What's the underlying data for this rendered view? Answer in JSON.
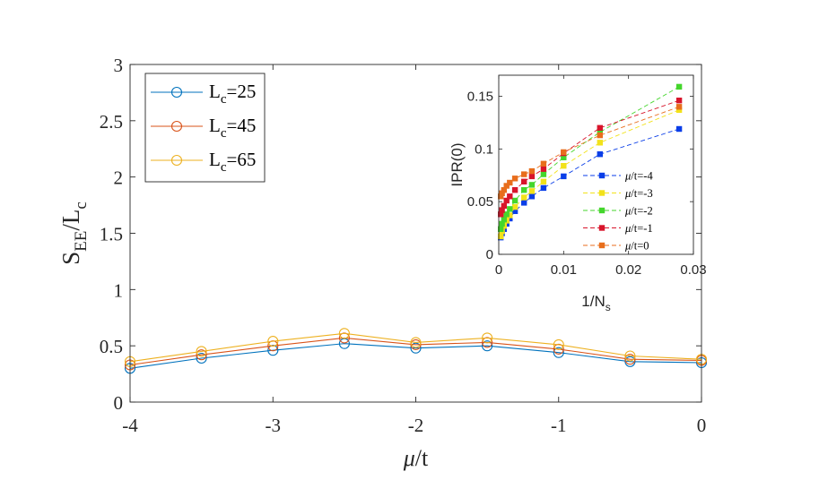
{
  "chart_data": [
    {
      "type": "line",
      "role": "main",
      "title": "",
      "xlabel": {
        "italic": "μ",
        "rest": "/t"
      },
      "ylabel": {
        "base": "S",
        "sub": "EE",
        "mid": "/L",
        "sub2": "c"
      },
      "xlim": [
        -4,
        0
      ],
      "ylim": [
        0,
        3
      ],
      "xticks": [
        -4,
        -3,
        -2,
        -1,
        0
      ],
      "yticks": [
        0,
        0.5,
        1,
        1.5,
        2,
        2.5,
        3
      ],
      "xtick_labels": [
        "-4",
        "-3",
        "-2",
        "-1",
        "0"
      ],
      "ytick_labels": [
        "0",
        "0.5",
        "1",
        "1.5",
        "2",
        "2.5",
        "3"
      ],
      "grid": false,
      "legend_position": "top-left",
      "x": [
        -4,
        -3.5,
        -3,
        -2.5,
        -2,
        -1.5,
        -1,
        -0.5,
        0
      ],
      "series": [
        {
          "name": "L_c=25",
          "label_base": "L",
          "label_sub": "c",
          "label_rest": "=25",
          "color": "#0072BD",
          "values": [
            0.3,
            0.39,
            0.46,
            0.52,
            0.48,
            0.5,
            0.44,
            0.36,
            0.35
          ]
        },
        {
          "name": "L_c=45",
          "label_base": "L",
          "label_sub": "c",
          "label_rest": "=45",
          "color": "#D95319",
          "values": [
            0.33,
            0.42,
            0.5,
            0.57,
            0.51,
            0.53,
            0.47,
            0.38,
            0.37
          ]
        },
        {
          "name": "L_c=65",
          "label_base": "L",
          "label_sub": "c",
          "label_rest": "=65",
          "color": "#EDB120",
          "values": [
            0.36,
            0.45,
            0.54,
            0.61,
            0.53,
            0.57,
            0.51,
            0.41,
            0.38
          ]
        }
      ]
    },
    {
      "type": "line",
      "role": "inset",
      "title": "",
      "xlabel": {
        "base": "1/N",
        "sub": "s"
      },
      "ylabel": {
        "text": "IPR(0)"
      },
      "xlim": [
        0,
        0.03
      ],
      "ylim": [
        0,
        0.17
      ],
      "xticks": [
        0,
        0.01,
        0.02,
        0.03
      ],
      "yticks": [
        0,
        0.05,
        0.1,
        0.15
      ],
      "xtick_labels": [
        "0",
        "0.01",
        "0.02",
        "0.03"
      ],
      "ytick_labels": [
        "0",
        "0.05",
        "0.1",
        "0.15"
      ],
      "grid": false,
      "legend_position": "bottom-right",
      "x": [
        0.0278,
        0.0156,
        0.01,
        0.0069,
        0.0051,
        0.0039,
        0.0025,
        0.0017,
        0.0012,
        0.0008,
        0.0005,
        0.0003
      ],
      "series": [
        {
          "name": "μ/t=-4",
          "label_italic": "μ",
          "label_rest": "/t=-4",
          "color": "#0a3ee8",
          "values": [
            0.119,
            0.095,
            0.074,
            0.063,
            0.055,
            0.049,
            0.041,
            0.034,
            0.029,
            0.024,
            0.02,
            0.016
          ]
        },
        {
          "name": "μ/t=-3",
          "label_italic": "μ",
          "label_rest": "/t=-3",
          "color": "#f2e21a",
          "values": [
            0.137,
            0.106,
            0.084,
            0.069,
            0.06,
            0.054,
            0.045,
            0.037,
            0.032,
            0.027,
            0.022,
            0.017
          ]
        },
        {
          "name": "μ/t=-2",
          "label_italic": "μ",
          "label_rest": "/t=-2",
          "color": "#44d62c",
          "values": [
            0.159,
            0.116,
            0.092,
            0.076,
            0.066,
            0.061,
            0.051,
            0.043,
            0.038,
            0.033,
            0.029,
            0.024
          ]
        },
        {
          "name": "μ/t=-1",
          "label_italic": "μ",
          "label_rest": "/t=-1",
          "color": "#d8152b",
          "values": [
            0.146,
            0.12,
            0.096,
            0.081,
            0.074,
            0.069,
            0.061,
            0.055,
            0.051,
            0.046,
            0.042,
            0.038
          ]
        },
        {
          "name": "μ/t=0",
          "label_italic": "μ",
          "label_rest": "/t=0",
          "color": "#e86e1c",
          "values": [
            0.14,
            0.113,
            0.097,
            0.086,
            0.079,
            0.076,
            0.072,
            0.068,
            0.065,
            0.061,
            0.058,
            0.055
          ]
        }
      ]
    }
  ]
}
